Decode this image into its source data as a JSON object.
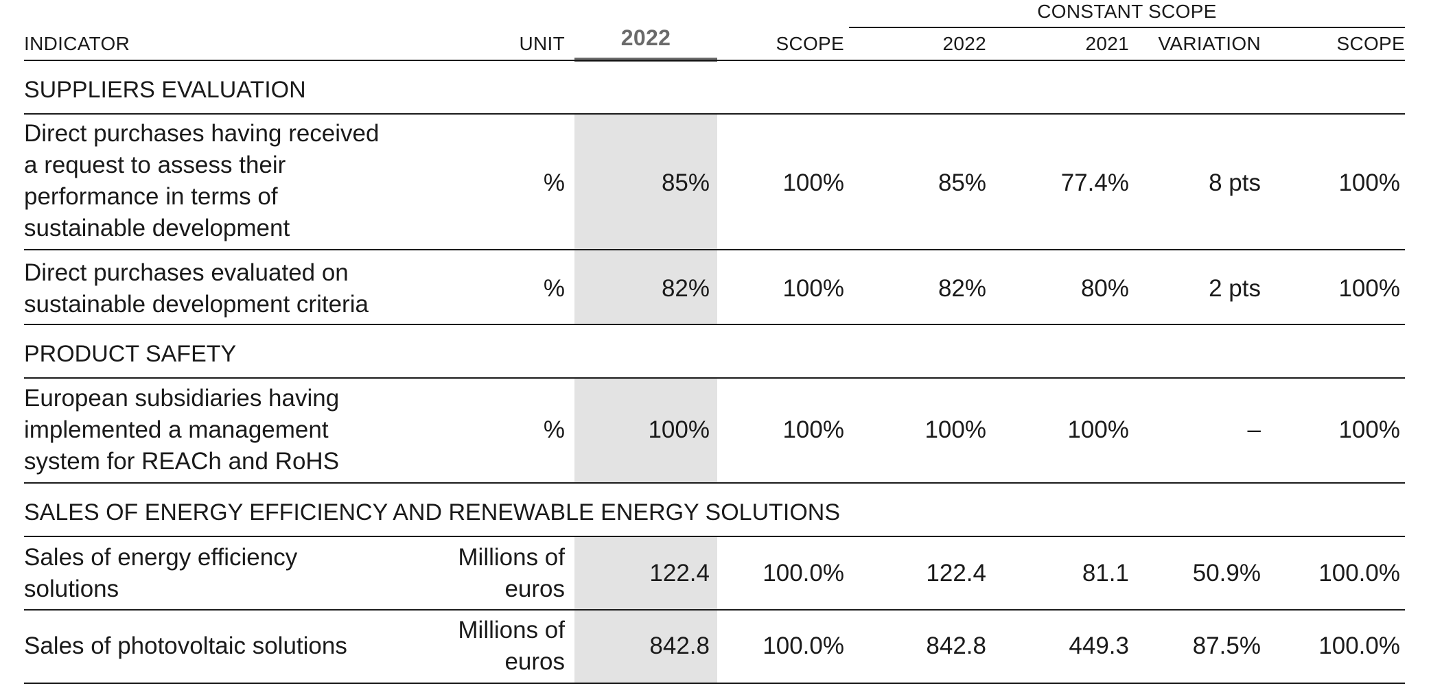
{
  "header": {
    "constant_scope": "CONSTANT SCOPE",
    "indicator": "INDICATOR",
    "unit": "UNIT",
    "year_main": "2022",
    "scope": "SCOPE",
    "cs_2022": "2022",
    "cs_2021": "2021",
    "cs_variation": "VARIATION",
    "cs_scope": "SCOPE"
  },
  "sections": [
    {
      "title": "SUPPLIERS EVALUATION",
      "rows": [
        {
          "indicator_lines": [
            "Direct purchases having received",
            "a request to assess their",
            "performance in terms of",
            "sustainable development"
          ],
          "unit_lines": [
            "%"
          ],
          "value_2022": "85%",
          "scope": "100%",
          "cs_2022": "85%",
          "cs_2021": "77.4%",
          "variation": "8 pts",
          "cs_scope": "100%"
        },
        {
          "indicator_lines": [
            "Direct purchases evaluated on",
            "sustainable development criteria"
          ],
          "unit_lines": [
            "%"
          ],
          "value_2022": "82%",
          "scope": "100%",
          "cs_2022": "82%",
          "cs_2021": "80%",
          "variation": "2 pts",
          "cs_scope": "100%"
        }
      ]
    },
    {
      "title": "PRODUCT SAFETY",
      "rows": [
        {
          "indicator_lines": [
            "European subsidiaries having",
            "implemented a management",
            "system for REACh and RoHS"
          ],
          "unit_lines": [
            "%"
          ],
          "value_2022": "100%",
          "scope": "100%",
          "cs_2022": "100%",
          "cs_2021": "100%",
          "variation": "–",
          "cs_scope": "100%"
        }
      ]
    },
    {
      "title": "SALES OF ENERGY EFFICIENCY AND RENEWABLE ENERGY SOLUTIONS",
      "rows": [
        {
          "indicator_lines": [
            "Sales of energy efficiency",
            "solutions"
          ],
          "unit_lines": [
            "Millions of",
            "euros"
          ],
          "value_2022": "122.4",
          "scope": "100.0%",
          "cs_2022": "122.4",
          "cs_2021": "81.1",
          "variation": "50.9%",
          "cs_scope": "100.0%"
        },
        {
          "indicator_lines": [
            "Sales of photovoltaic solutions"
          ],
          "unit_lines": [
            "Millions of",
            "euros"
          ],
          "value_2022": "842.8",
          "scope": "100.0%",
          "cs_2022": "842.8",
          "cs_2021": "449.3",
          "variation": "87.5%",
          "cs_scope": "100.0%"
        }
      ]
    }
  ],
  "colors": {
    "highlight_column": "#e3e3e3",
    "rule": "#1a1a1a",
    "year_accent": "#6a6a6a"
  }
}
